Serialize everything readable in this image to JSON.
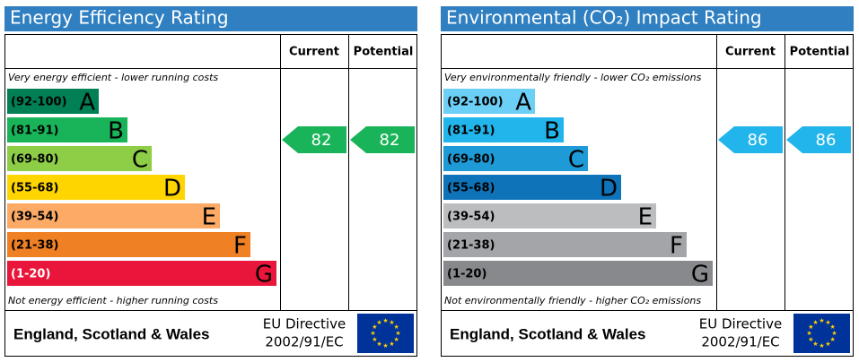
{
  "chart_data": [
    {
      "type": "epc",
      "title": "Energy Efficiency Rating",
      "headers": [
        "Current",
        "Potential"
      ],
      "top_note": "Very energy efficient - lower running costs",
      "bottom_note": "Not energy efficient - higher running costs",
      "bands": [
        {
          "range": "(92-100)",
          "letter": "A",
          "color": "#008054"
        },
        {
          "range": "(81-91)",
          "letter": "B",
          "color": "#19b459"
        },
        {
          "range": "(69-80)",
          "letter": "C",
          "color": "#8dce46"
        },
        {
          "range": "(55-68)",
          "letter": "D",
          "color": "#ffd500"
        },
        {
          "range": "(39-54)",
          "letter": "E",
          "color": "#fcaa65"
        },
        {
          "range": "(21-38)",
          "letter": "F",
          "color": "#ef8023"
        },
        {
          "range": "(1-20)",
          "letter": "G",
          "color": "#e9153b"
        }
      ],
      "current": 82,
      "potential": 82,
      "region": "England, Scotland & Wales",
      "directive": [
        "EU Directive",
        "2002/91/EC"
      ]
    },
    {
      "type": "epc",
      "title": "Environmental (CO₂) Impact Rating",
      "headers": [
        "Current",
        "Potential"
      ],
      "top_note": "Very environmentally friendly - lower CO₂ emissions",
      "bottom_note": "Not environmentally friendly - higher CO₂ emissions",
      "bands": [
        {
          "range": "(92-100)",
          "letter": "A",
          "color": "#6ccff6"
        },
        {
          "range": "(81-91)",
          "letter": "B",
          "color": "#22b5eb"
        },
        {
          "range": "(69-80)",
          "letter": "C",
          "color": "#1e9ad6"
        },
        {
          "range": "(55-68)",
          "letter": "D",
          "color": "#0f73ba"
        },
        {
          "range": "(39-54)",
          "letter": "E",
          "color": "#bbbdbf"
        },
        {
          "range": "(21-38)",
          "letter": "F",
          "color": "#a3a5a8"
        },
        {
          "range": "(1-20)",
          "letter": "G",
          "color": "#87898c"
        }
      ],
      "current": 86,
      "potential": 86,
      "region": "England, Scotland & Wales",
      "directive": [
        "EU Directive",
        "2002/91/EC"
      ]
    }
  ]
}
